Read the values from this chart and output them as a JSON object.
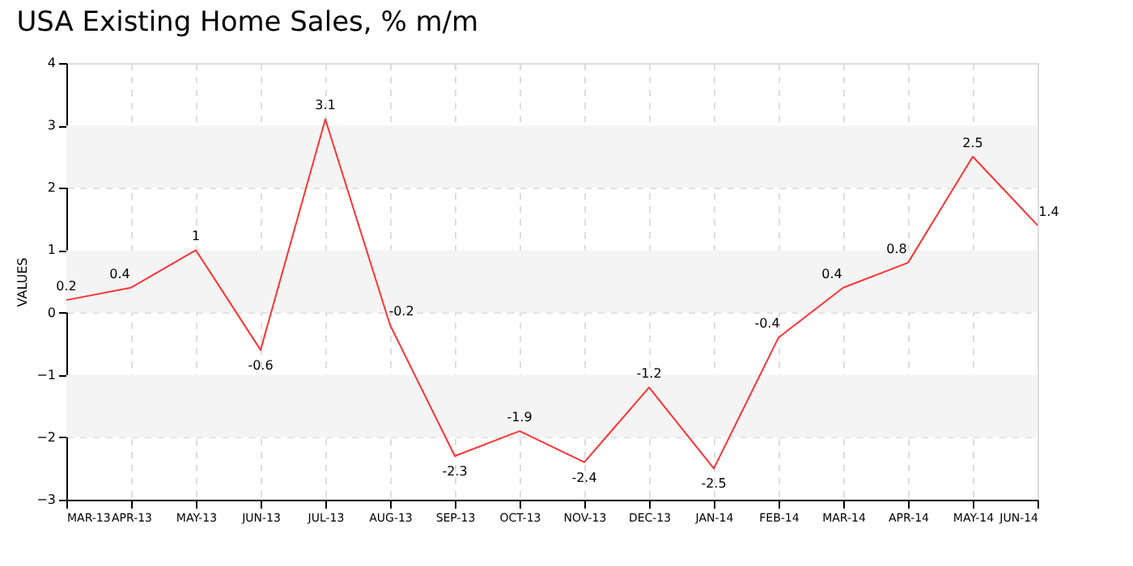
{
  "chart_data": {
    "type": "line",
    "title": "USA Existing Home Sales, % m/m",
    "ylabel": "VALUES",
    "categories": [
      "MAR-13",
      "APR-13",
      "MAY-13",
      "JUN-13",
      "JUL-13",
      "AUG-13",
      "SEP-13",
      "OCT-13",
      "NOV-13",
      "DEC-13",
      "JAN-14",
      "FEB-14",
      "MAR-14",
      "APR-14",
      "MAY-14",
      "JUN-14"
    ],
    "series": [
      {
        "color": "#ff3333",
        "values": [
          0.2,
          0.4,
          1,
          -0.6,
          3.1,
          -0.2,
          -2.3,
          -1.9,
          -2.4,
          -1.2,
          -2.5,
          -0.4,
          0.4,
          0.8,
          2.5,
          1.4
        ]
      }
    ],
    "ylim": [
      -3,
      4
    ],
    "yticks": [
      -3,
      -2,
      -1,
      0,
      1,
      2,
      3,
      4
    ],
    "bands": [
      {
        "axis": "y",
        "from": 2,
        "to": 3,
        "color": "#f4f4f4"
      },
      {
        "axis": "y",
        "from": 0,
        "to": 1,
        "color": "#f4f4f4"
      },
      {
        "axis": "y",
        "from": -2,
        "to": -1,
        "color": "#f4f4f4"
      }
    ],
    "grid": true,
    "data_labels": true,
    "marker": "none",
    "line_style": "solid"
  }
}
